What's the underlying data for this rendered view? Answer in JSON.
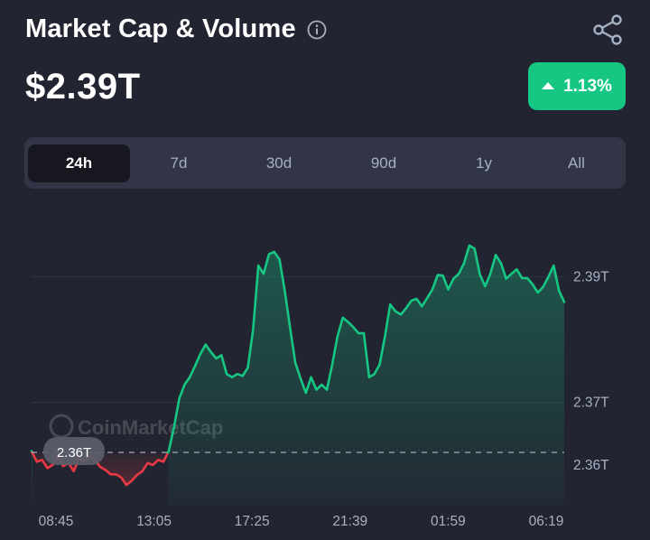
{
  "header": {
    "title": "Market Cap & Volume",
    "info_icon": "info-circle-icon",
    "share_icon": "share-icon",
    "price": "$2.39T",
    "change": "1.13%",
    "change_direction": "up",
    "accent_up": "#16c784",
    "accent_down": "#ea3943"
  },
  "tabs": [
    {
      "label": "24h",
      "active": true
    },
    {
      "label": "7d",
      "active": false
    },
    {
      "label": "30d",
      "active": false
    },
    {
      "label": "90d",
      "active": false
    },
    {
      "label": "1y",
      "active": false
    },
    {
      "label": "All",
      "active": false
    }
  ],
  "chart_data": {
    "type": "line",
    "watermark": "CoinMarketCap",
    "reference_label": "2.36T",
    "reference_value": 2.362,
    "x_ticks": [
      "08:45",
      "13:05",
      "17:25",
      "21:39",
      "01:59",
      "06:19"
    ],
    "y_ticks": [
      {
        "label": "2.39T",
        "value": 2.39
      },
      {
        "label": "2.37T",
        "value": 2.37
      },
      {
        "label": "2.36T",
        "value": 2.36
      }
    ],
    "ylim": [
      2.3535,
      2.4032
    ],
    "grid": true,
    "series": [
      {
        "values": [
          2.3622,
          2.3605,
          2.3608,
          2.3595,
          2.36,
          2.3612,
          2.3598,
          2.3603,
          2.359,
          2.361,
          2.3606,
          2.3614,
          2.3608,
          2.3597,
          2.3592,
          2.3585,
          2.3585,
          2.358,
          2.3568,
          2.3575,
          2.3584,
          2.359,
          2.3603,
          2.36,
          2.3608,
          2.3605,
          2.3622,
          2.366,
          2.3706,
          2.3728,
          2.374,
          2.3758,
          2.3777,
          2.3792,
          2.378,
          2.377,
          2.3775,
          2.3745,
          2.374,
          2.3745,
          2.3742,
          2.3755,
          2.3815,
          2.3918,
          2.3905,
          2.3936,
          2.394,
          2.3928,
          2.3878,
          2.382,
          2.3763,
          2.3738,
          2.3715,
          2.374,
          2.372,
          2.3728,
          2.372,
          2.376,
          2.3805,
          2.3835,
          2.3828,
          2.382,
          2.381,
          2.381,
          2.374,
          2.3745,
          2.376,
          2.3805,
          2.3856,
          2.3845,
          2.384,
          2.385,
          2.3862,
          2.3865,
          2.3853,
          2.3866,
          2.388,
          2.3903,
          2.3902,
          2.388,
          2.3897,
          2.3905,
          2.3922,
          2.395,
          2.3945,
          2.3904,
          2.3885,
          2.3905,
          2.3935,
          2.3922,
          2.3897,
          2.3905,
          2.3912,
          2.3898,
          2.3898,
          2.3888,
          2.3875,
          2.3884,
          2.39,
          2.3918,
          2.3878,
          2.386
        ]
      }
    ]
  }
}
